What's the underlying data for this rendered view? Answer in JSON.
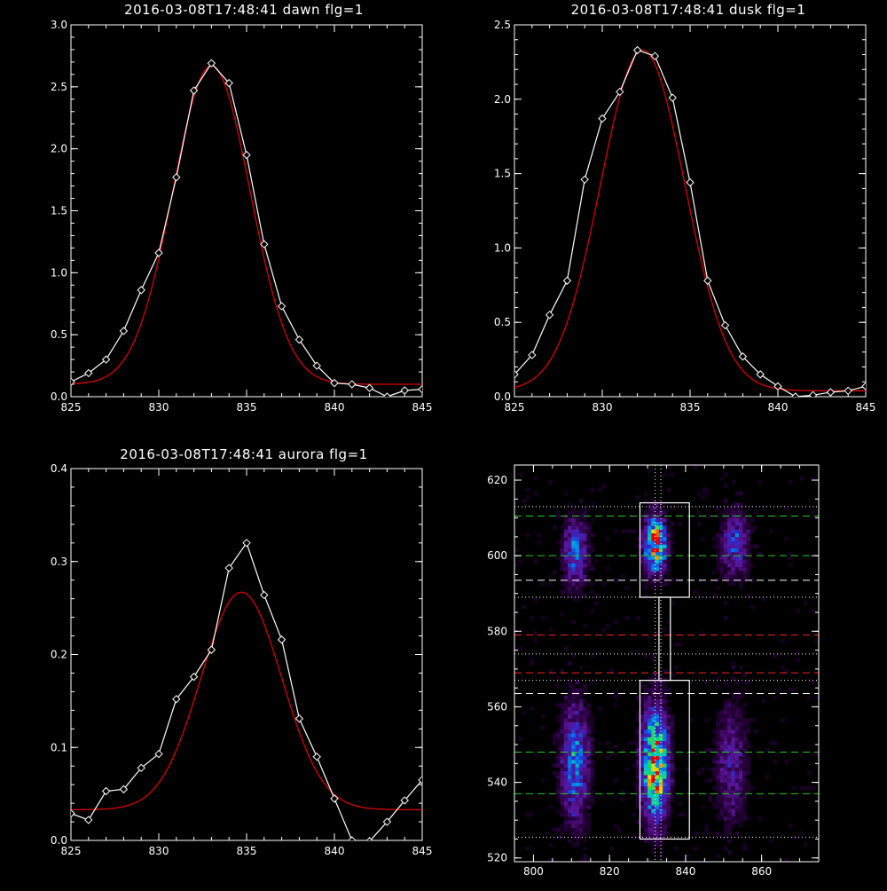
{
  "colors": {
    "background": "#000000",
    "axes": "#ffffff",
    "data_line": "#ffffff",
    "fit_line": "#dd0000",
    "guide_green": "#22cc22",
    "guide_red": "#ff2222",
    "guide_white": "#ffffff"
  },
  "chart_data": [
    {
      "id": "dawn",
      "type": "line",
      "title": "2016-03-08T17:48:41 dawn flg=1",
      "xlim": [
        825,
        845
      ],
      "ylim": [
        0,
        3.0
      ],
      "xticks": [
        "825",
        "830",
        "835",
        "840",
        "845"
      ],
      "yticks": [
        "0.0",
        "0.5",
        "1.0",
        "1.5",
        "2.0",
        "2.5",
        "3.0"
      ],
      "series": [
        {
          "role": "data",
          "marker": "diamond",
          "color": "#ffffff",
          "x": [
            825,
            826,
            827,
            828,
            829,
            830,
            831,
            832,
            833,
            834,
            835,
            836,
            837,
            838,
            839,
            840,
            841,
            842,
            843,
            844,
            845
          ],
          "y": [
            0.12,
            0.19,
            0.3,
            0.53,
            0.86,
            1.16,
            1.77,
            2.47,
            2.69,
            2.53,
            1.95,
            1.23,
            0.73,
            0.46,
            0.25,
            0.11,
            0.1,
            0.07,
            0.0,
            0.05,
            0.06
          ]
        },
        {
          "role": "fit",
          "color": "#dd0000",
          "shape": "gaussian",
          "peak": 2.67,
          "center": 33.0,
          "sigma": 2.2,
          "baseline": 0.1,
          "x_offset": 800
        }
      ]
    },
    {
      "id": "dusk",
      "type": "line",
      "title": "2016-03-08T17:48:41 dusk flg=1",
      "xlim": [
        825,
        845
      ],
      "ylim": [
        0,
        2.5
      ],
      "xticks": [
        "825",
        "830",
        "835",
        "840",
        "845"
      ],
      "yticks": [
        "0.0",
        "0.5",
        "1.0",
        "1.5",
        "2.0",
        "2.5"
      ],
      "series": [
        {
          "role": "data",
          "marker": "diamond",
          "color": "#ffffff",
          "x": [
            825,
            826,
            827,
            828,
            829,
            830,
            831,
            832,
            833,
            834,
            835,
            836,
            837,
            838,
            839,
            840,
            841,
            842,
            843,
            844,
            845
          ],
          "y": [
            0.15,
            0.28,
            0.55,
            0.78,
            1.46,
            1.87,
            2.05,
            2.33,
            2.29,
            2.01,
            1.44,
            0.78,
            0.48,
            0.27,
            0.15,
            0.07,
            0.0,
            0.01,
            0.03,
            0.04,
            0.07
          ]
        },
        {
          "role": "fit",
          "color": "#dd0000",
          "shape": "gaussian",
          "peak": 2.33,
          "center": 32.3,
          "sigma": 2.4,
          "baseline": 0.04,
          "x_offset": 800
        }
      ]
    },
    {
      "id": "aurora",
      "type": "line",
      "title": "2016-03-08T17:48:41 aurora flg=1",
      "xlim": [
        825,
        845
      ],
      "ylim": [
        0,
        0.4
      ],
      "xticks": [
        "825",
        "830",
        "835",
        "840",
        "845"
      ],
      "yticks": [
        "0.0",
        "0.1",
        "0.2",
        "0.3",
        "0.4"
      ],
      "series": [
        {
          "role": "data",
          "marker": "diamond",
          "color": "#ffffff",
          "x": [
            825,
            826,
            827,
            828,
            829,
            830,
            831,
            832,
            833,
            834,
            835,
            836,
            837,
            838,
            839,
            840,
            841,
            842,
            843,
            844,
            845
          ],
          "y": [
            0.029,
            0.022,
            0.053,
            0.055,
            0.078,
            0.093,
            0.152,
            0.176,
            0.205,
            0.293,
            0.32,
            0.264,
            0.216,
            0.131,
            0.09,
            0.045,
            0.0,
            -0.001,
            0.02,
            0.043,
            0.065
          ]
        },
        {
          "role": "fit",
          "color": "#dd0000",
          "shape": "gaussian",
          "peak": 0.267,
          "center": 34.7,
          "sigma": 2.3,
          "baseline": 0.033,
          "x_offset": 800
        }
      ]
    },
    {
      "id": "spectrogram",
      "type": "heatmap",
      "title": "",
      "xlim": [
        795,
        875
      ],
      "ylim": [
        519,
        624
      ],
      "xticks": [
        "800",
        "820",
        "840",
        "860"
      ],
      "yticks": [
        "520",
        "540",
        "560",
        "580",
        "600",
        "620"
      ],
      "sources": [
        {
          "x": 811,
          "y": 601,
          "sx": 2.2,
          "sy": 6,
          "amp": 0.45
        },
        {
          "x": 832,
          "y": 603,
          "sx": 2.0,
          "sy": 5,
          "amp": 0.9
        },
        {
          "x": 853,
          "y": 603,
          "sx": 2.5,
          "sy": 6,
          "amp": 0.35
        },
        {
          "x": 811,
          "y": 545,
          "sx": 2.5,
          "sy": 11,
          "amp": 0.45
        },
        {
          "x": 832,
          "y": 545,
          "sx": 2.3,
          "sy": 10,
          "amp": 0.9
        },
        {
          "x": 852,
          "y": 545,
          "sx": 3.0,
          "sy": 11,
          "amp": 0.25
        }
      ],
      "boxes": [
        {
          "x0": 828,
          "x1": 841,
          "y0": 589,
          "y1": 614
        },
        {
          "x0": 833,
          "x1": 836,
          "y0": 567,
          "y1": 589
        },
        {
          "x0": 828,
          "x1": 841,
          "y0": 525,
          "y1": 567
        }
      ],
      "vlines": [
        832,
        833.5
      ],
      "hlines": [
        {
          "y": 613,
          "style": "dotted",
          "color": "#ffffff"
        },
        {
          "y": 610.5,
          "style": "dashed",
          "color": "#22cc22"
        },
        {
          "y": 600,
          "style": "dashed",
          "color": "#22cc22"
        },
        {
          "y": 593.5,
          "style": "dashed",
          "color": "#ffffff"
        },
        {
          "y": 589,
          "style": "dotted",
          "color": "#ffffff"
        },
        {
          "y": 579,
          "style": "dashed",
          "color": "#ff2222"
        },
        {
          "y": 574,
          "style": "dotted",
          "color": "#ffffff"
        },
        {
          "y": 569,
          "style": "dashed",
          "color": "#ff2222"
        },
        {
          "y": 567,
          "style": "dotted",
          "color": "#ffffff"
        },
        {
          "y": 563.5,
          "style": "dashed",
          "color": "#ffffff"
        },
        {
          "y": 548,
          "style": "dashed",
          "color": "#22cc22"
        },
        {
          "y": 537,
          "style": "dashed",
          "color": "#22cc22"
        },
        {
          "y": 525.5,
          "style": "dotted",
          "color": "#ffffff"
        }
      ]
    }
  ]
}
